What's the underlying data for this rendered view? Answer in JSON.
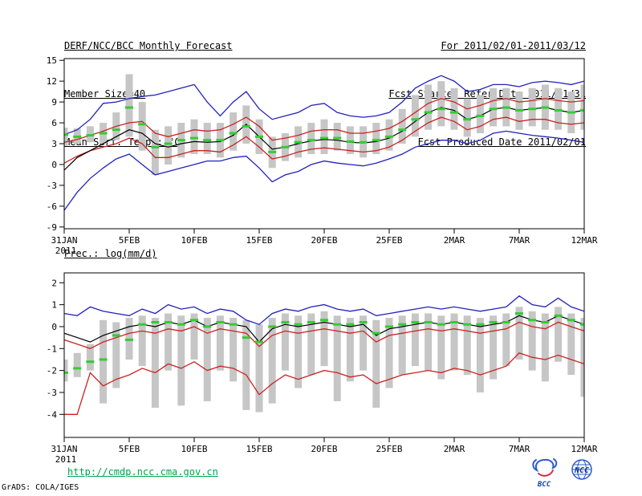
{
  "header": {
    "left_lines": [
      "DERF/NCC/BCC Monthly Forecast",
      "Member Size=40",
      "Mean Surf. Temp.: °C"
    ],
    "right_lines": [
      "For 2011/02/01-2011/03/12",
      "Fcst Started Refer Date 2011/01/31",
      "Fcst Produced Date 2011/02/01"
    ]
  },
  "footer": {
    "url": "http://cmdp.ncc.cma.gov.cn",
    "credit": "GrADS: COLA/IGES",
    "logos": [
      "BCC",
      "NCC"
    ]
  },
  "colors": {
    "ensemble_bar": "#c6c6c6",
    "extreme_line": "#2222bb",
    "bound_line": "#cc2222",
    "mean_line": "#000000",
    "median_mark": "#33cc33"
  },
  "chart_data": [
    {
      "id": "temp-chart",
      "type": "line",
      "title": "Mean Surf. Temp.: °C",
      "ylabel": "°C",
      "ylim": [
        -9,
        15
      ],
      "yticks": [
        -9,
        -6,
        -3,
        0,
        3,
        6,
        9,
        12,
        15
      ],
      "x_tick_labels": [
        "31JAN",
        "5FEB",
        "10FEB",
        "15FEB",
        "20FEB",
        "25FEB",
        "2MAR",
        "7MAR",
        "12MAR"
      ],
      "x_tick_days": [
        0,
        5,
        10,
        15,
        20,
        25,
        30,
        35,
        40
      ],
      "x_year_label": "2011",
      "grid": false,
      "legend": false,
      "series": [
        {
          "name": "ensemble-spread",
          "type": "range-bar",
          "color": "#c6c6c6",
          "low": [
            2.7,
            3.0,
            3.2,
            3.0,
            3.5,
            4.0,
            2.0,
            -1.5,
            0.0,
            1.0,
            1.5,
            1.5,
            1.0,
            2.0,
            3.0,
            1.5,
            -0.5,
            0.5,
            1.0,
            1.5,
            1.5,
            2.0,
            1.5,
            1.0,
            1.5,
            2.0,
            3.0,
            4.0,
            5.0,
            5.5,
            5.0,
            4.0,
            4.5,
            5.5,
            5.5,
            5.0,
            5.5,
            5.0,
            5.0,
            4.5,
            5.0
          ],
          "high": [
            5.3,
            5.2,
            5.5,
            6.0,
            7.5,
            13.0,
            9.0,
            5.0,
            5.5,
            6.0,
            6.5,
            6.0,
            6.0,
            7.5,
            8.5,
            6.5,
            4.0,
            4.5,
            5.5,
            6.0,
            6.5,
            6.0,
            5.5,
            5.5,
            6.0,
            6.5,
            8.0,
            10.0,
            11.5,
            12.0,
            11.0,
            9.5,
            10.0,
            11.0,
            11.0,
            10.5,
            11.0,
            11.5,
            11.0,
            10.5,
            11.5
          ]
        },
        {
          "name": "ensemble-max",
          "type": "line",
          "color": "#2222bb",
          "values": [
            4.3,
            5.0,
            6.5,
            8.8,
            9.0,
            9.5,
            9.8,
            10.0,
            10.5,
            11.0,
            11.5,
            9.0,
            7.0,
            9.0,
            10.5,
            8.0,
            6.5,
            7.0,
            7.5,
            8.5,
            8.8,
            7.5,
            7.0,
            6.8,
            7.0,
            7.5,
            9.0,
            11.0,
            12.0,
            12.8,
            12.0,
            10.5,
            10.8,
            11.5,
            11.5,
            11.2,
            11.8,
            12.0,
            11.8,
            11.5,
            12.0
          ]
        },
        {
          "name": "ensemble-min",
          "type": "line",
          "color": "#2222bb",
          "values": [
            -6.6,
            -4.0,
            -2.0,
            -0.5,
            0.8,
            1.5,
            0.0,
            -1.5,
            -1.0,
            -0.5,
            0.0,
            0.5,
            0.5,
            1.0,
            1.2,
            -0.5,
            -2.5,
            -1.5,
            -1.0,
            0.0,
            0.5,
            0.2,
            0.0,
            -0.2,
            0.2,
            0.8,
            1.5,
            2.5,
            3.0,
            3.5,
            3.5,
            3.0,
            3.5,
            4.5,
            4.8,
            4.5,
            4.2,
            4.0,
            3.8,
            3.5,
            3.2
          ]
        },
        {
          "name": "upper-bound",
          "type": "line",
          "color": "#cc2222",
          "values": [
            3.2,
            3.6,
            4.2,
            4.8,
            5.5,
            6.0,
            6.2,
            4.5,
            4.0,
            4.5,
            5.0,
            4.8,
            5.0,
            5.8,
            6.8,
            5.5,
            3.5,
            3.8,
            4.2,
            4.8,
            5.0,
            5.0,
            4.5,
            4.5,
            4.8,
            5.2,
            6.2,
            7.5,
            8.8,
            9.5,
            9.0,
            8.0,
            8.5,
            9.2,
            9.5,
            9.0,
            9.2,
            9.5,
            9.2,
            9.0,
            9.2
          ]
        },
        {
          "name": "lower-bound",
          "type": "line",
          "color": "#cc2222",
          "values": [
            0.2,
            1.2,
            2.0,
            2.5,
            3.0,
            3.8,
            3.0,
            1.0,
            1.0,
            1.5,
            2.0,
            2.0,
            1.8,
            2.8,
            4.0,
            2.5,
            0.8,
            1.2,
            1.8,
            2.2,
            2.4,
            2.2,
            2.0,
            1.8,
            2.0,
            2.5,
            3.5,
            4.8,
            6.0,
            6.8,
            6.2,
            5.0,
            5.5,
            6.5,
            6.8,
            6.2,
            6.5,
            6.5,
            6.0,
            5.8,
            6.0
          ]
        },
        {
          "name": "ensemble-mean",
          "type": "line",
          "color": "#000000",
          "values": [
            -0.8,
            1.0,
            2.0,
            3.0,
            4.0,
            5.0,
            4.5,
            3.0,
            2.5,
            3.0,
            3.3,
            3.2,
            3.3,
            4.2,
            5.8,
            4.0,
            2.2,
            2.5,
            3.0,
            3.4,
            3.6,
            3.5,
            3.2,
            3.1,
            3.3,
            3.8,
            4.8,
            6.2,
            7.5,
            8.2,
            7.8,
            6.5,
            7.0,
            8.0,
            8.2,
            7.8,
            8.0,
            8.2,
            7.8,
            7.5,
            7.8
          ]
        },
        {
          "name": "median",
          "type": "dash",
          "color": "#33cc33",
          "values": [
            4.3,
            4.0,
            4.2,
            4.5,
            5.0,
            8.2,
            5.8,
            2.5,
            3.0,
            3.5,
            3.8,
            3.5,
            3.5,
            4.5,
            5.5,
            4.0,
            1.8,
            2.5,
            3.2,
            3.5,
            3.8,
            3.8,
            3.3,
            3.2,
            3.5,
            4.0,
            5.0,
            6.5,
            7.5,
            8.0,
            7.5,
            6.5,
            7.0,
            8.0,
            8.2,
            7.8,
            8.0,
            8.2,
            7.8,
            7.5,
            7.8
          ]
        }
      ]
    },
    {
      "id": "precip-chart",
      "type": "line",
      "title": "Prec.: log(mm/d)",
      "ylabel": "log(mm/d)",
      "ylim": [
        -4,
        2
      ],
      "yticks": [
        -4,
        -3,
        -2,
        -1,
        0,
        1,
        2
      ],
      "x_tick_labels": [
        "31JAN",
        "5FEB",
        "10FEB",
        "15FEB",
        "20FEB",
        "25FEB",
        "2MAR",
        "7MAR",
        "12MAR"
      ],
      "x_tick_days": [
        0,
        5,
        10,
        15,
        20,
        25,
        30,
        35,
        40
      ],
      "x_year_label": "2011",
      "grid": false,
      "legend": false,
      "series": [
        {
          "name": "ensemble-spread",
          "type": "range-bar",
          "color": "#c6c6c6",
          "low": [
            -2.5,
            -2.3,
            -2.0,
            -3.5,
            -2.8,
            -1.5,
            -1.8,
            -3.7,
            -2.0,
            -3.6,
            -1.5,
            -3.4,
            -2.0,
            -2.5,
            -3.8,
            -3.9,
            -3.5,
            -2.0,
            -2.8,
            -2.2,
            -1.8,
            -3.4,
            -2.5,
            -2.0,
            -3.7,
            -2.8,
            -2.2,
            -1.8,
            -2.0,
            -2.4,
            -2.0,
            -2.2,
            -3.0,
            -2.4,
            -1.8,
            -1.5,
            -2.0,
            -2.5,
            -1.6,
            -2.2,
            -3.2
          ],
          "high": [
            -1.5,
            -1.2,
            -0.8,
            0.3,
            0.2,
            0.4,
            0.5,
            0.4,
            0.6,
            0.5,
            0.6,
            0.4,
            0.5,
            0.4,
            0.3,
            0.1,
            0.4,
            0.6,
            0.5,
            0.6,
            0.7,
            0.5,
            0.4,
            0.5,
            0.3,
            0.4,
            0.5,
            0.6,
            0.6,
            0.5,
            0.6,
            0.5,
            0.4,
            0.5,
            0.6,
            0.9,
            0.7,
            0.6,
            0.9,
            0.6,
            0.4
          ]
        },
        {
          "name": "ensemble-max",
          "type": "line",
          "color": "#2222bb",
          "values": [
            0.6,
            0.5,
            0.9,
            0.7,
            0.6,
            0.5,
            0.8,
            0.6,
            1.0,
            0.8,
            0.9,
            0.6,
            0.8,
            0.7,
            0.3,
            0.1,
            0.6,
            0.8,
            0.7,
            0.9,
            1.0,
            0.8,
            0.7,
            0.8,
            0.5,
            0.6,
            0.7,
            0.8,
            0.9,
            0.8,
            0.9,
            0.8,
            0.7,
            0.8,
            0.9,
            1.4,
            1.0,
            0.9,
            1.3,
            0.9,
            0.7
          ]
        },
        {
          "name": "upper-bound",
          "type": "line",
          "color": "#cc2222",
          "values": [
            -0.6,
            -0.8,
            -1.0,
            -0.7,
            -0.5,
            -0.3,
            -0.2,
            -0.3,
            -0.1,
            -0.2,
            0.0,
            -0.3,
            -0.1,
            -0.2,
            -0.3,
            -0.9,
            -0.4,
            -0.2,
            -0.3,
            -0.2,
            -0.1,
            -0.2,
            -0.3,
            -0.2,
            -0.7,
            -0.4,
            -0.3,
            -0.2,
            -0.1,
            -0.2,
            -0.1,
            -0.2,
            -0.3,
            -0.2,
            -0.1,
            0.2,
            0.0,
            -0.1,
            0.2,
            0.0,
            -0.2
          ]
        },
        {
          "name": "lower-bound",
          "type": "line",
          "color": "#cc2222",
          "values": [
            -4.0,
            -4.0,
            -2.1,
            -2.7,
            -2.4,
            -2.2,
            -1.9,
            -2.1,
            -1.7,
            -1.9,
            -1.6,
            -2.0,
            -1.8,
            -1.9,
            -2.2,
            -3.1,
            -2.6,
            -2.2,
            -2.4,
            -2.2,
            -2.0,
            -2.1,
            -2.3,
            -2.2,
            -2.6,
            -2.4,
            -2.2,
            -2.1,
            -2.0,
            -2.1,
            -1.9,
            -2.0,
            -2.2,
            -2.0,
            -1.8,
            -1.2,
            -1.4,
            -1.5,
            -1.3,
            -1.5,
            -1.7
          ]
        },
        {
          "name": "ensemble-mean",
          "type": "line",
          "color": "#000000",
          "values": [
            -0.3,
            -0.5,
            -0.7,
            -0.4,
            -0.2,
            0.0,
            0.1,
            0.0,
            0.2,
            0.1,
            0.3,
            0.0,
            0.2,
            0.1,
            0.0,
            -0.7,
            -0.1,
            0.1,
            0.0,
            0.1,
            0.2,
            0.1,
            0.0,
            0.1,
            -0.4,
            -0.1,
            0.0,
            0.1,
            0.2,
            0.1,
            0.2,
            0.1,
            0.0,
            0.1,
            0.2,
            0.5,
            0.3,
            0.2,
            0.5,
            0.3,
            0.1
          ]
        },
        {
          "name": "median",
          "type": "dash",
          "color": "#33cc33",
          "values": [
            -2.1,
            -1.9,
            -1.6,
            -1.5,
            -0.4,
            -0.6,
            0.1,
            0.2,
            0.2,
            0.1,
            0.3,
            0.0,
            0.2,
            0.1,
            -0.5,
            -0.7,
            0.0,
            0.2,
            0.1,
            0.2,
            0.3,
            0.1,
            0.1,
            0.2,
            -0.3,
            0.0,
            0.1,
            0.2,
            0.2,
            0.1,
            0.2,
            0.1,
            0.1,
            0.2,
            0.2,
            0.6,
            0.3,
            0.2,
            0.5,
            0.3,
            0.1
          ]
        }
      ]
    }
  ]
}
